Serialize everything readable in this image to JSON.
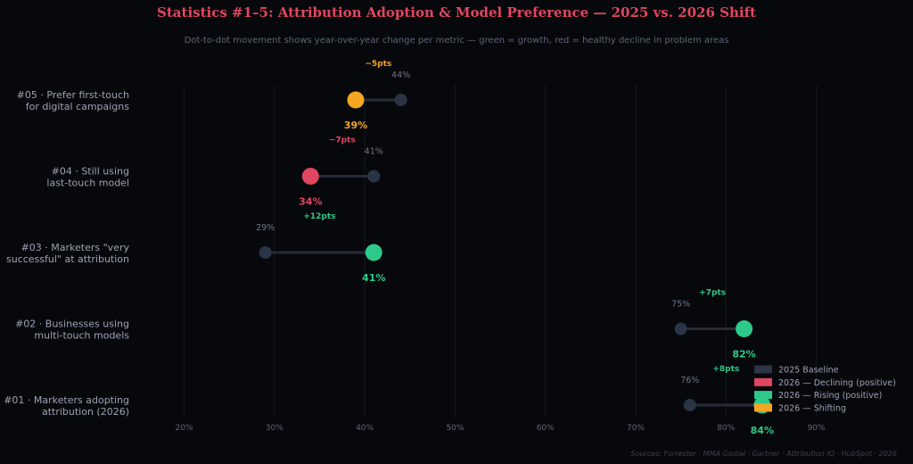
{
  "colors": {
    "background": "#07080c",
    "baseline": "#2a3444",
    "declining": "#e0465f",
    "rising": "#2ec98a",
    "shifting": "#f5a623",
    "grid": "#141821",
    "connector": "#262b38"
  },
  "chart_data": {
    "type": "dumbbell",
    "title": "Statistics #1–5: Attribution Adoption & Model Preference — 2025 vs. 2026 Shift",
    "subtitle": "Dot-to-dot movement shows year-over-year change per metric — green = growth, red = healthy decline in problem areas",
    "xlim": [
      15,
      95
    ],
    "x_ticks": [
      20,
      30,
      40,
      50,
      60,
      70,
      80,
      90
    ],
    "x_tick_labels": [
      "20%",
      "30%",
      "40%",
      "50%",
      "60%",
      "70%",
      "80%",
      "90%"
    ],
    "grid": true,
    "legend_position": "bottom-right",
    "rows": [
      {
        "label_line1": "#05 · Prefer first-touch",
        "label_line2": "for digital campaigns",
        "v2025": 44,
        "v2026": 39,
        "v2025_label": "44%",
        "v2026_label": "39%",
        "delta_label": "−5pts",
        "status": "shifting"
      },
      {
        "label_line1": "#04 · Still using",
        "label_line2": "last-touch model",
        "v2025": 41,
        "v2026": 34,
        "v2025_label": "41%",
        "v2026_label": "34%",
        "delta_label": "−7pts",
        "status": "declining"
      },
      {
        "label_line1": "#03 · Marketers \"very",
        "label_line2": "successful\" at attribution",
        "v2025": 29,
        "v2026": 41,
        "v2025_label": "29%",
        "v2026_label": "41%",
        "delta_label": "+12pts",
        "status": "rising"
      },
      {
        "label_line1": "#02 · Businesses using",
        "label_line2": "multi-touch models",
        "v2025": 75,
        "v2026": 82,
        "v2025_label": "75%",
        "v2026_label": "82%",
        "delta_label": "+7pts",
        "status": "rising"
      },
      {
        "label_line1": "#01 · Marketers adopting",
        "label_line2": "attribution (2026)",
        "v2025": 76,
        "v2026": 84,
        "v2025_label": "76%",
        "v2026_label": "84%",
        "delta_label": "+8pts",
        "status": "rising"
      }
    ],
    "legend": [
      {
        "label": "2025 Baseline",
        "color_key": "baseline"
      },
      {
        "label": "2026 — Declining (positive)",
        "color_key": "declining"
      },
      {
        "label": "2026 — Rising (positive)",
        "color_key": "rising"
      },
      {
        "label": "2026 — Shifting",
        "color_key": "shifting"
      }
    ],
    "source": "Sources: Forrester · MMA Global · Gartner · Attribution IQ · HubSpot · 2026"
  }
}
